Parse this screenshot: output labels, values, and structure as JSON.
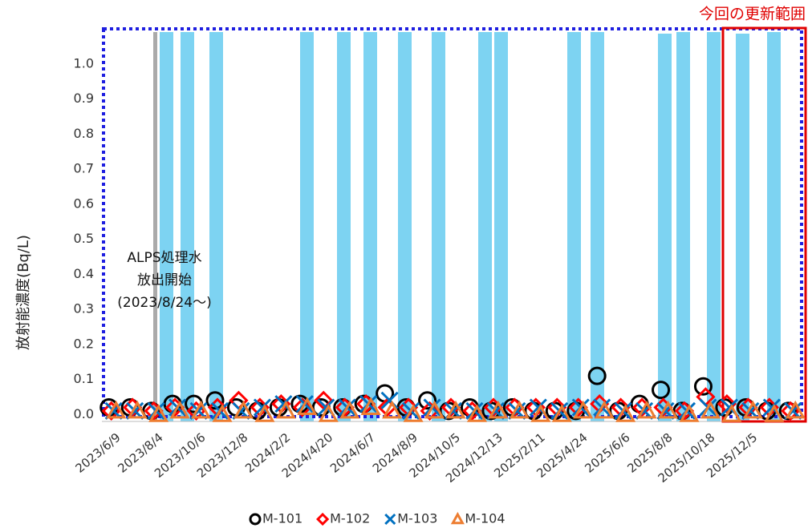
{
  "chart_data": {
    "type": "scatter",
    "y_label": "放射能濃度(Bq/L)",
    "annotation": [
      "ALPS処理水",
      "放出開始",
      "(2023/8/24～)"
    ],
    "highlight_label": "今回の更新範囲",
    "categories": [
      "2023/6/9",
      null,
      "2023/8/4",
      null,
      "2023/10/6",
      null,
      "2023/12/8",
      null,
      "2024/2/2",
      null,
      "2024/4/20",
      null,
      "2024/6/7",
      null,
      "2024/8/9",
      null,
      "2024/10/5",
      null,
      "2024/12/13",
      null,
      "2025/2/11",
      null,
      "2025/4/24",
      null,
      "2025/6/6",
      null,
      "2025/8/8",
      null,
      "2025/10/18",
      null,
      "2025/12/5",
      null,
      null
    ],
    "ylim": [
      -0.02,
      1.1
    ],
    "yticks": [
      {
        "value": 0,
        "label": "0.0"
      },
      0.1,
      0.2,
      0.3,
      0.4,
      0.5,
      0.6,
      0.7,
      0.8,
      0.9,
      {
        "value": 1,
        "label": "1.0"
      }
    ],
    "series": [
      {
        "name": "M-101",
        "color": "#000000",
        "marker": "circle",
        "values": [
          0.02,
          0.02,
          0.01,
          0.03,
          0.03,
          0.04,
          0.02,
          0.01,
          0.02,
          0.03,
          0.02,
          0.02,
          0.03,
          0.06,
          0.02,
          0.04,
          0.01,
          0.02,
          0.01,
          0.02,
          0.01,
          0.01,
          0.01,
          0.11,
          0.01,
          0.03,
          0.07,
          0.01,
          0.08,
          0.02,
          0.02,
          0.01,
          0.01
        ]
      },
      {
        "name": "M-102",
        "color": "#ff0000",
        "marker": "diamond",
        "values": [
          0.01,
          0.02,
          0.01,
          0.02,
          0.01,
          0.02,
          0.04,
          0.02,
          0.03,
          0.02,
          0.04,
          0.02,
          0.03,
          0.02,
          0.02,
          0.01,
          0.02,
          0.01,
          0.02,
          0.02,
          0.02,
          0.02,
          0.02,
          0.03,
          0.02,
          0.02,
          0.02,
          0.01,
          0.05,
          0.03,
          0.02,
          0.02,
          0.01
        ]
      },
      {
        "name": "M-103",
        "color": "#0070c0",
        "marker": "x",
        "values": [
          0.01,
          0.01,
          0.01,
          0.02,
          0.01,
          0.01,
          0.01,
          0.02,
          0.03,
          0.03,
          0.02,
          0.02,
          0.03,
          0.04,
          0.01,
          0.02,
          0.01,
          0.01,
          0.01,
          0.01,
          0.02,
          0.01,
          0.02,
          0.02,
          0.01,
          0.01,
          0.01,
          0.01,
          0.02,
          0.02,
          0.01,
          0.02,
          0.01
        ]
      },
      {
        "name": "M-104",
        "color": "#ed7d31",
        "marker": "triangle",
        "values": [
          0.01,
          0.01,
          0.0,
          0.01,
          0.01,
          0.0,
          0.01,
          0.0,
          0.01,
          0.02,
          0.0,
          0.01,
          0.02,
          0.01,
          0.0,
          0.01,
          0.01,
          0.0,
          0.01,
          0.01,
          0.0,
          0.0,
          0.01,
          0.01,
          0.0,
          0.01,
          0.01,
          0.0,
          0.01,
          0.0,
          0.01,
          0.0,
          0.01
        ]
      }
    ]
  }
}
